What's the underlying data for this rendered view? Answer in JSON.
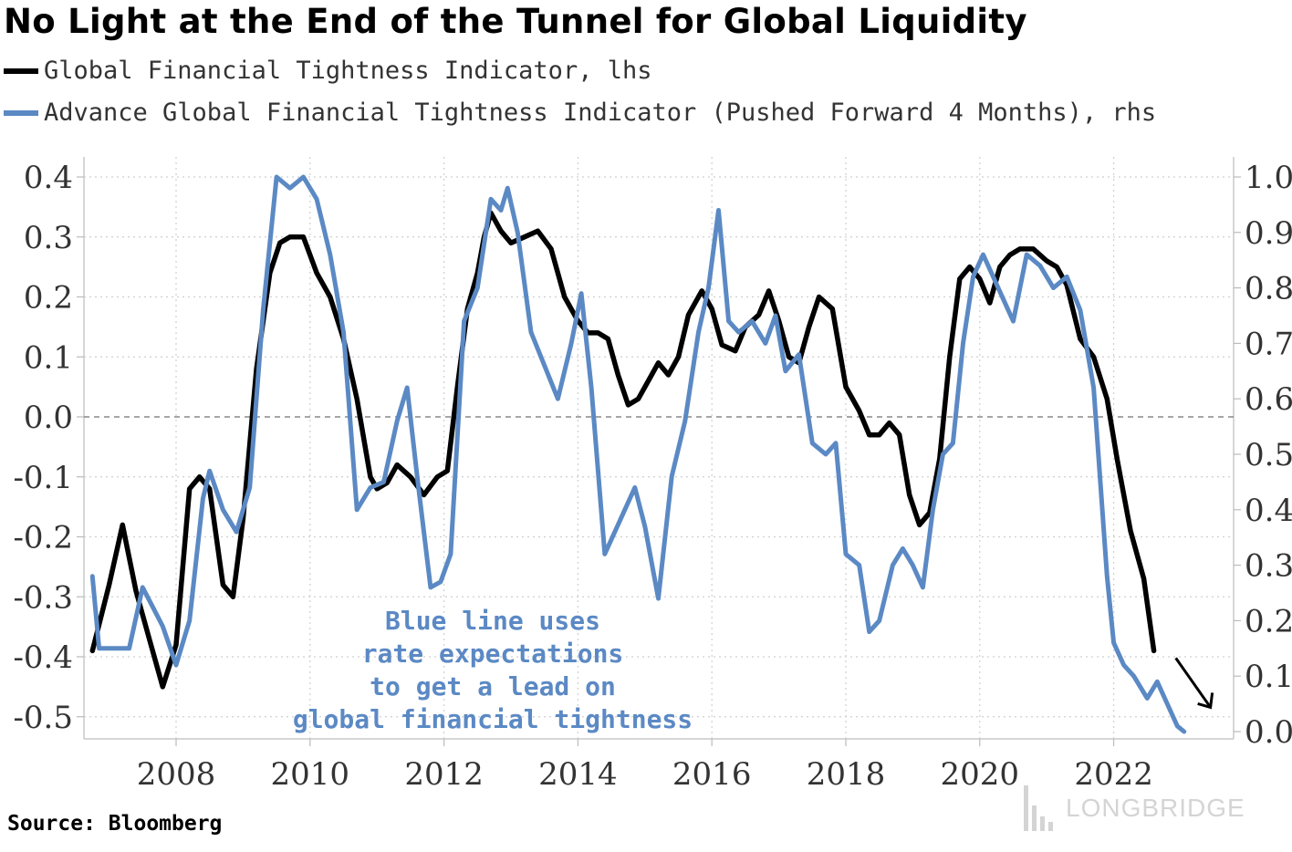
{
  "chart_data": {
    "type": "line",
    "title": "No Light at the End of the Tunnel for Global Liquidity",
    "source": "Source: Bloomberg",
    "watermark": "LONGBRIDGE",
    "annotation": [
      "Blue line uses",
      "rate expectations",
      "to get a lead on",
      "global financial tightness"
    ],
    "x_ticks": [
      "2008",
      "2010",
      "2012",
      "2014",
      "2016",
      "2018",
      "2020",
      "2022"
    ],
    "y_left": {
      "lim": [
        -0.55,
        0.42
      ],
      "ticks": [
        "0.4",
        "0.3",
        "0.2",
        "0.1",
        "0.0",
        "-0.1",
        "-0.2",
        "-0.3",
        "-0.4",
        "-0.5"
      ]
    },
    "y_right": {
      "lim": [
        -0.005,
        1.05
      ],
      "ticks": [
        "1.0",
        "0.9",
        "0.8",
        "0.7",
        "0.6",
        "0.5",
        "0.4",
        "0.3",
        "0.2",
        "0.1",
        "0.0"
      ]
    },
    "colors": {
      "black_series": "#000000",
      "blue_series": "#5b89c4",
      "annotation": "#5b89c4",
      "grid": "#c8c8c8"
    },
    "grid": true,
    "series": [
      {
        "name": "Global Financial Tightness Indicator, lhs",
        "axis": "left",
        "color": "#000000",
        "points": [
          [
            2006.75,
            -0.39
          ],
          [
            2007.0,
            -0.28
          ],
          [
            2007.2,
            -0.18
          ],
          [
            2007.4,
            -0.29
          ],
          [
            2007.6,
            -0.37
          ],
          [
            2007.8,
            -0.45
          ],
          [
            2008.0,
            -0.38
          ],
          [
            2008.2,
            -0.12
          ],
          [
            2008.35,
            -0.1
          ],
          [
            2008.5,
            -0.12
          ],
          [
            2008.7,
            -0.28
          ],
          [
            2008.85,
            -0.3
          ],
          [
            2009.0,
            -0.17
          ],
          [
            2009.2,
            0.08
          ],
          [
            2009.4,
            0.24
          ],
          [
            2009.55,
            0.29
          ],
          [
            2009.7,
            0.3
          ],
          [
            2009.9,
            0.3
          ],
          [
            2010.1,
            0.24
          ],
          [
            2010.3,
            0.2
          ],
          [
            2010.5,
            0.13
          ],
          [
            2010.7,
            0.03
          ],
          [
            2010.9,
            -0.1
          ],
          [
            2011.0,
            -0.12
          ],
          [
            2011.15,
            -0.11
          ],
          [
            2011.3,
            -0.08
          ],
          [
            2011.5,
            -0.1
          ],
          [
            2011.7,
            -0.13
          ],
          [
            2011.9,
            -0.1
          ],
          [
            2012.05,
            -0.09
          ],
          [
            2012.2,
            0.05
          ],
          [
            2012.35,
            0.18
          ],
          [
            2012.5,
            0.24
          ],
          [
            2012.6,
            0.3
          ],
          [
            2012.7,
            0.34
          ],
          [
            2012.85,
            0.31
          ],
          [
            2013.0,
            0.29
          ],
          [
            2013.2,
            0.3
          ],
          [
            2013.4,
            0.31
          ],
          [
            2013.6,
            0.28
          ],
          [
            2013.8,
            0.2
          ],
          [
            2014.0,
            0.16
          ],
          [
            2014.15,
            0.14
          ],
          [
            2014.3,
            0.14
          ],
          [
            2014.45,
            0.13
          ],
          [
            2014.6,
            0.07
          ],
          [
            2014.75,
            0.02
          ],
          [
            2014.9,
            0.03
          ],
          [
            2015.05,
            0.06
          ],
          [
            2015.2,
            0.09
          ],
          [
            2015.35,
            0.07
          ],
          [
            2015.5,
            0.1
          ],
          [
            2015.65,
            0.17
          ],
          [
            2015.85,
            0.21
          ],
          [
            2016.0,
            0.18
          ],
          [
            2016.15,
            0.12
          ],
          [
            2016.35,
            0.11
          ],
          [
            2016.5,
            0.15
          ],
          [
            2016.7,
            0.17
          ],
          [
            2016.85,
            0.21
          ],
          [
            2017.0,
            0.16
          ],
          [
            2017.15,
            0.1
          ],
          [
            2017.3,
            0.09
          ],
          [
            2017.45,
            0.15
          ],
          [
            2017.6,
            0.2
          ],
          [
            2017.8,
            0.18
          ],
          [
            2018.0,
            0.05
          ],
          [
            2018.2,
            0.01
          ],
          [
            2018.35,
            -0.03
          ],
          [
            2018.5,
            -0.03
          ],
          [
            2018.65,
            -0.01
          ],
          [
            2018.8,
            -0.03
          ],
          [
            2018.95,
            -0.13
          ],
          [
            2019.1,
            -0.18
          ],
          [
            2019.25,
            -0.16
          ],
          [
            2019.4,
            -0.07
          ],
          [
            2019.55,
            0.1
          ],
          [
            2019.7,
            0.23
          ],
          [
            2019.85,
            0.25
          ],
          [
            2020.0,
            0.23
          ],
          [
            2020.15,
            0.19
          ],
          [
            2020.3,
            0.25
          ],
          [
            2020.45,
            0.27
          ],
          [
            2020.6,
            0.28
          ],
          [
            2020.8,
            0.28
          ],
          [
            2021.0,
            0.26
          ],
          [
            2021.15,
            0.25
          ],
          [
            2021.3,
            0.22
          ],
          [
            2021.5,
            0.13
          ],
          [
            2021.7,
            0.1
          ],
          [
            2021.9,
            0.03
          ],
          [
            2022.05,
            -0.07
          ],
          [
            2022.25,
            -0.19
          ],
          [
            2022.45,
            -0.27
          ],
          [
            2022.6,
            -0.39
          ]
        ]
      },
      {
        "name": "Advance Global Financial Tightness Indicator (Pushed Forward 4 Months), rhs",
        "axis": "right",
        "color": "#5b89c4",
        "points": [
          [
            2006.75,
            0.28
          ],
          [
            2006.85,
            0.15
          ],
          [
            2007.0,
            0.15
          ],
          [
            2007.3,
            0.15
          ],
          [
            2007.5,
            0.26
          ],
          [
            2007.8,
            0.19
          ],
          [
            2008.0,
            0.12
          ],
          [
            2008.2,
            0.2
          ],
          [
            2008.4,
            0.42
          ],
          [
            2008.5,
            0.47
          ],
          [
            2008.7,
            0.4
          ],
          [
            2008.9,
            0.36
          ],
          [
            2009.1,
            0.44
          ],
          [
            2009.3,
            0.76
          ],
          [
            2009.5,
            1.0
          ],
          [
            2009.7,
            0.98
          ],
          [
            2009.9,
            1.0
          ],
          [
            2010.1,
            0.96
          ],
          [
            2010.3,
            0.86
          ],
          [
            2010.5,
            0.72
          ],
          [
            2010.7,
            0.4
          ],
          [
            2010.9,
            0.44
          ],
          [
            2011.1,
            0.45
          ],
          [
            2011.3,
            0.56
          ],
          [
            2011.45,
            0.62
          ],
          [
            2011.6,
            0.46
          ],
          [
            2011.8,
            0.26
          ],
          [
            2011.95,
            0.27
          ],
          [
            2012.1,
            0.32
          ],
          [
            2012.3,
            0.74
          ],
          [
            2012.5,
            0.8
          ],
          [
            2012.7,
            0.96
          ],
          [
            2012.85,
            0.94
          ],
          [
            2012.95,
            0.98
          ],
          [
            2013.1,
            0.9
          ],
          [
            2013.3,
            0.72
          ],
          [
            2013.5,
            0.66
          ],
          [
            2013.7,
            0.6
          ],
          [
            2013.9,
            0.7
          ],
          [
            2014.05,
            0.79
          ],
          [
            2014.2,
            0.62
          ],
          [
            2014.4,
            0.32
          ],
          [
            2014.55,
            0.36
          ],
          [
            2014.7,
            0.4
          ],
          [
            2014.85,
            0.44
          ],
          [
            2015.0,
            0.37
          ],
          [
            2015.2,
            0.24
          ],
          [
            2015.4,
            0.46
          ],
          [
            2015.6,
            0.56
          ],
          [
            2015.8,
            0.72
          ],
          [
            2015.95,
            0.8
          ],
          [
            2016.1,
            0.94
          ],
          [
            2016.25,
            0.74
          ],
          [
            2016.4,
            0.72
          ],
          [
            2016.6,
            0.74
          ],
          [
            2016.8,
            0.7
          ],
          [
            2016.95,
            0.75
          ],
          [
            2017.1,
            0.65
          ],
          [
            2017.3,
            0.68
          ],
          [
            2017.5,
            0.52
          ],
          [
            2017.7,
            0.5
          ],
          [
            2017.85,
            0.52
          ],
          [
            2018.0,
            0.32
          ],
          [
            2018.2,
            0.3
          ],
          [
            2018.35,
            0.18
          ],
          [
            2018.5,
            0.2
          ],
          [
            2018.7,
            0.3
          ],
          [
            2018.85,
            0.33
          ],
          [
            2019.0,
            0.3
          ],
          [
            2019.15,
            0.26
          ],
          [
            2019.3,
            0.4
          ],
          [
            2019.45,
            0.5
          ],
          [
            2019.6,
            0.52
          ],
          [
            2019.75,
            0.7
          ],
          [
            2019.9,
            0.82
          ],
          [
            2020.05,
            0.86
          ],
          [
            2020.2,
            0.82
          ],
          [
            2020.35,
            0.78
          ],
          [
            2020.5,
            0.74
          ],
          [
            2020.7,
            0.86
          ],
          [
            2020.9,
            0.84
          ],
          [
            2021.1,
            0.8
          ],
          [
            2021.3,
            0.82
          ],
          [
            2021.5,
            0.76
          ],
          [
            2021.7,
            0.62
          ],
          [
            2021.9,
            0.28
          ],
          [
            2022.0,
            0.16
          ],
          [
            2022.15,
            0.12
          ],
          [
            2022.3,
            0.1
          ],
          [
            2022.5,
            0.06
          ],
          [
            2022.65,
            0.09
          ],
          [
            2022.8,
            0.05
          ],
          [
            2022.95,
            0.01
          ],
          [
            2023.05,
            0.0
          ]
        ]
      }
    ]
  }
}
